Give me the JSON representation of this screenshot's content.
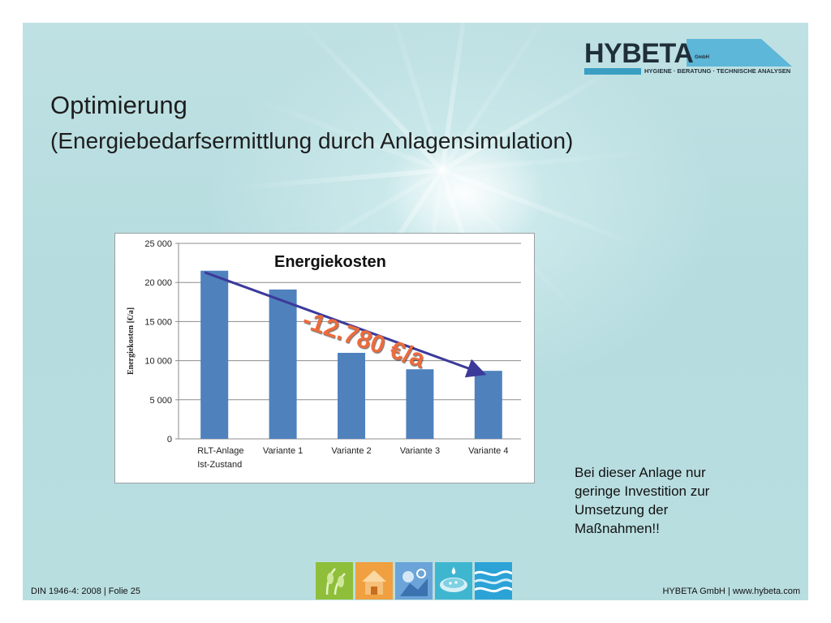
{
  "logo": {
    "name": "HYBETA",
    "suffix": "GmbH",
    "tagline": "HYGIENE · BERATUNG · TECHNISCHE ANALYSEN"
  },
  "title": "Optimierung",
  "subtitle": "(Energiebedarfsermittlung durch Anlagensimulation)",
  "chart_data": {
    "type": "bar",
    "title": "Energiekosten",
    "xlabel": "",
    "ylabel": "Energiekosten [€/a]",
    "categories": [
      [
        "RLT-Anlage",
        "Ist-Zustand"
      ],
      [
        "Variante 1"
      ],
      [
        "Variante 2"
      ],
      [
        "Variante 3"
      ],
      [
        "Variante 4"
      ]
    ],
    "values": [
      21500,
      19100,
      11000,
      8900,
      8700
    ],
    "ylim": [
      0,
      25000
    ],
    "yticks": [
      0,
      5000,
      10000,
      15000,
      20000,
      25000
    ],
    "ytick_labels": [
      "0",
      "5 000",
      "10 000",
      "15 000",
      "20 000",
      "25 000"
    ],
    "grid": true,
    "bar_color": "#4f81bd",
    "annotation": {
      "text": "-12.780 €/a",
      "from_category": 0,
      "to_category": 4,
      "arrow_color": "#3b3a9a",
      "text_color": "#ec6b3d"
    }
  },
  "note": [
    "Bei dieser Anlage nur",
    "geringe Investition zur",
    "Umsetzung der",
    "Maßnahmen!!"
  ],
  "footer": {
    "left": "DIN 1946-4: 2008 | Folie 25",
    "right": "HYBETA GmbH | www.hybeta.com"
  },
  "icons": [
    {
      "name": "plant-icon",
      "color": "#8fbf3a"
    },
    {
      "name": "house-icon",
      "color": "#f0a040"
    },
    {
      "name": "lab-icon",
      "color": "#5a9bd5"
    },
    {
      "name": "petri-dish-icon",
      "color": "#3fb6d0"
    },
    {
      "name": "water-icon",
      "color": "#2ba3d6"
    }
  ]
}
